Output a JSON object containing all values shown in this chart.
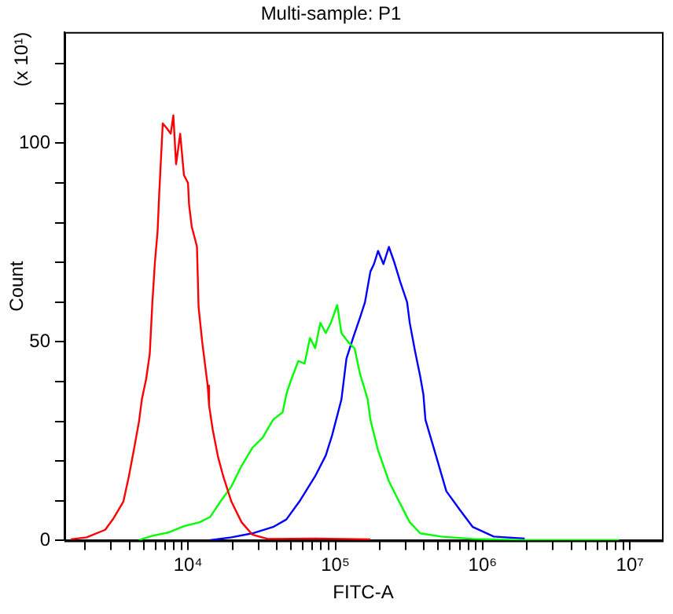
{
  "chart_data": {
    "type": "line",
    "title": "Multi-sample: P1",
    "xlabel": "FITC-A",
    "ylabel": "Count",
    "annotations": [
      "(x 10¹)"
    ],
    "log": "x",
    "grid": false,
    "legend": false,
    "marker": "none",
    "line_style": "solid",
    "xlim": [
      1450,
      16500000
    ],
    "xticks": [
      {
        "value": 2000,
        "label": null
      },
      {
        "value": 3000,
        "label": null
      },
      {
        "value": 4000,
        "label": null
      },
      {
        "value": 5000,
        "label": null
      },
      {
        "value": 6000,
        "label": null
      },
      {
        "value": 7000,
        "label": null
      },
      {
        "value": 8000,
        "label": null
      },
      {
        "value": 9000,
        "label": null
      },
      {
        "value": 10000,
        "label": "10⁴"
      },
      {
        "value": 20000,
        "label": null
      },
      {
        "value": 30000,
        "label": null
      },
      {
        "value": 40000,
        "label": null
      },
      {
        "value": 50000,
        "label": null
      },
      {
        "value": 60000,
        "label": null
      },
      {
        "value": 70000,
        "label": null
      },
      {
        "value": 80000,
        "label": null
      },
      {
        "value": 90000,
        "label": null
      },
      {
        "value": 100000,
        "label": "10⁵"
      },
      {
        "value": 200000,
        "label": null
      },
      {
        "value": 300000,
        "label": null
      },
      {
        "value": 400000,
        "label": null
      },
      {
        "value": 500000,
        "label": null
      },
      {
        "value": 600000,
        "label": null
      },
      {
        "value": 700000,
        "label": null
      },
      {
        "value": 800000,
        "label": null
      },
      {
        "value": 900000,
        "label": null
      },
      {
        "value": 1000000,
        "label": "10⁶"
      },
      {
        "value": 2000000,
        "label": null
      },
      {
        "value": 3000000,
        "label": null
      },
      {
        "value": 4000000,
        "label": null
      },
      {
        "value": 5000000,
        "label": null
      },
      {
        "value": 6000000,
        "label": null
      },
      {
        "value": 7000000,
        "label": null
      },
      {
        "value": 8000000,
        "label": null
      },
      {
        "value": 9000000,
        "label": null
      },
      {
        "value": 10000000,
        "label": "10⁷"
      }
    ],
    "ylim": [
      0,
      128
    ],
    "yticks": [
      0,
      {
        "value": 10,
        "label": null
      },
      {
        "value": 20,
        "label": null
      },
      {
        "value": 30,
        "label": null
      },
      {
        "value": 40,
        "label": null
      },
      50,
      {
        "value": 60,
        "label": null
      },
      {
        "value": 70,
        "label": null
      },
      {
        "value": 80,
        "label": null
      },
      {
        "value": 90,
        "label": null
      },
      100,
      {
        "value": 110,
        "label": null
      },
      {
        "value": 120,
        "label": null
      }
    ],
    "series": [
      {
        "color": "#ff0000",
        "x": [
          1600,
          2050,
          2740,
          3100,
          3640,
          3960,
          4300,
          4650,
          4860,
          5200,
          5500,
          5730,
          5960,
          6220,
          6370,
          6740,
          7210,
          7630,
          7950,
          8300,
          8850,
          9380,
          10000,
          10170,
          10600,
          11500,
          11800,
          12500,
          13600,
          13900,
          14700,
          16000,
          17400,
          19700,
          23100,
          27300,
          34800,
          73000,
          173000
        ],
        "values": [
          0.3,
          0.8,
          2.7,
          5.4,
          9.8,
          16,
          23,
          30,
          35.5,
          40.7,
          47,
          60,
          70,
          78,
          87,
          105,
          103.7,
          102.4,
          107,
          94.7,
          102.4,
          92,
          90,
          84.5,
          79,
          74,
          58.7,
          49.8,
          39,
          34,
          28,
          21,
          16,
          9.8,
          4.6,
          1.5,
          0.4,
          0.5,
          0.3
        ]
      },
      {
        "color": "#00ff00",
        "x": [
          4650,
          5730,
          7330,
          9380,
          12000,
          14100,
          16600,
          19700,
          23100,
          27300,
          32100,
          37800,
          43900,
          46500,
          50400,
          56100,
          61800,
          67300,
          73000,
          79100,
          86100,
          93300,
          103000,
          110000,
          124000,
          135000,
          147000,
          166000,
          173000,
          195000,
          231000,
          271000,
          320000,
          377000,
          523000,
          857000,
          1930000,
          8450000
        ],
        "values": [
          0.1,
          1.2,
          2,
          3.6,
          4.6,
          5.9,
          9.8,
          13.6,
          18.8,
          23.3,
          25.9,
          30.4,
          32.3,
          36.8,
          40.7,
          45.2,
          44.5,
          51,
          48.4,
          54.8,
          52.2,
          54.8,
          59.3,
          52.2,
          49.7,
          48.4,
          42,
          35.5,
          30.4,
          22.7,
          14.9,
          9.8,
          4.6,
          1.8,
          1,
          0.4,
          0.1,
          0.1
        ]
      },
      {
        "color": "#0000ff",
        "x": [
          14100,
          19700,
          27300,
          37800,
          46500,
          57000,
          73000,
          86100,
          95100,
          110000,
          119000,
          132000,
          147000,
          159000,
          173000,
          183000,
          195000,
          212000,
          231000,
          250000,
          276000,
          307000,
          320000,
          347000,
          377000,
          396000,
          409000,
          482000,
          567000,
          698000,
          857000,
          1190000,
          1930000
        ],
        "values": [
          0.1,
          0.8,
          1.8,
          3.4,
          5.3,
          9.8,
          16.2,
          21.4,
          26.5,
          35.5,
          45.8,
          51,
          56.1,
          60,
          67.7,
          69.6,
          72.9,
          69.6,
          73.9,
          70.3,
          65.1,
          60,
          54.8,
          47.8,
          41.3,
          36.8,
          30.4,
          21.4,
          12.4,
          7.8,
          3.4,
          1,
          0.5
        ]
      }
    ]
  }
}
